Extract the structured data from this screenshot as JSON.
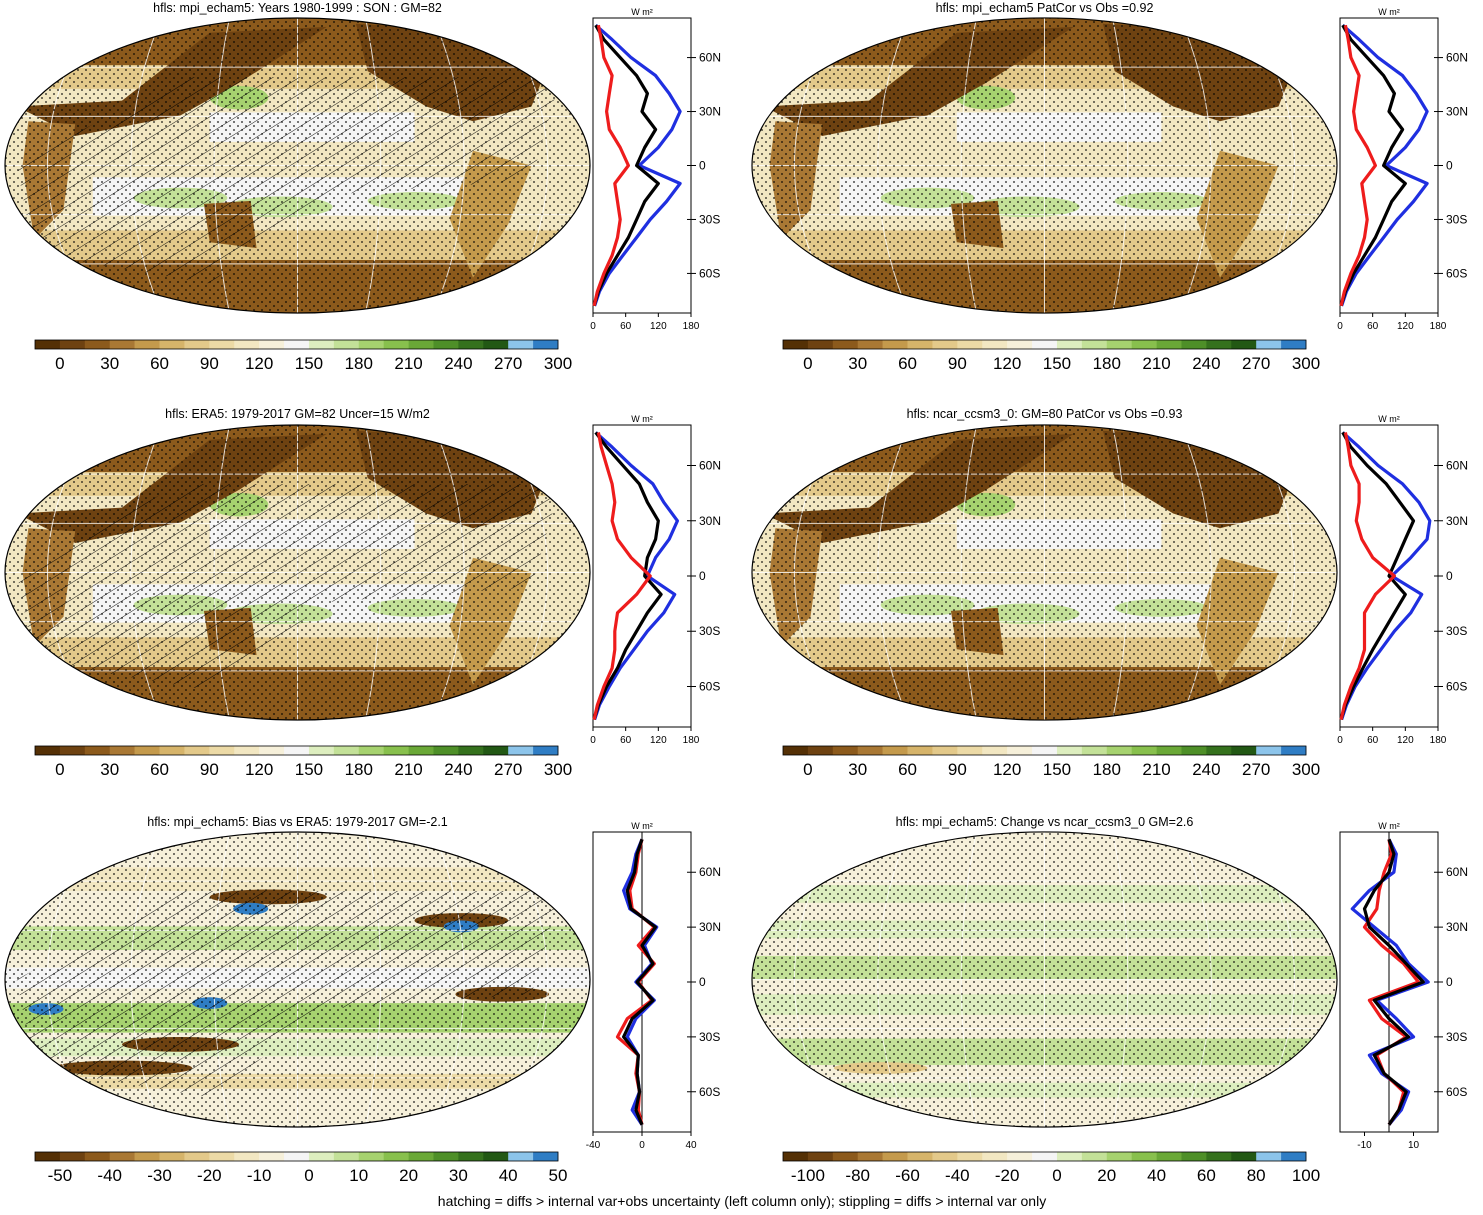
{
  "caption": "hatching = diffs > internal var+obs uncertainty (left column only); stippling = diffs > internal var only",
  "colors": {
    "abs_palette": [
      "#543005",
      "#6e4211",
      "#8c5a1c",
      "#a97834",
      "#c49a4c",
      "#d6b46a",
      "#e3c98a",
      "#ecdaa6",
      "#f2e7c2",
      "#f6f0da",
      "#f5f5f5",
      "#ddeebf",
      "#c3e198",
      "#a6d26f",
      "#88c04d",
      "#6aa837",
      "#4e8f28",
      "#35711d",
      "#225814",
      "#8cc4ea",
      "#2f7dc4"
    ],
    "diff_palette": [
      "#543005",
      "#6e4211",
      "#8c5a1c",
      "#a97834",
      "#c49a4c",
      "#d6b46a",
      "#e3c98a",
      "#ecdaa6",
      "#f2e7c2",
      "#f6f0da",
      "#f5f5f5",
      "#ddeebf",
      "#c3e198",
      "#a6d26f",
      "#88c04d",
      "#6aa837",
      "#4e8f28",
      "#35711d",
      "#225814",
      "#8cc4ea",
      "#2f7dc4"
    ],
    "model": "#1f2fe0",
    "obs": "#ee1c1c",
    "combined": "#000000"
  },
  "chart_data": [
    {
      "type": "heatmap",
      "title": "hfls: mpi_echam5: Years 1980-1999 : SON : GM=82",
      "map_style": "abs",
      "hatching": true,
      "colorbar_labels": [
        "0",
        "30",
        "60",
        "90",
        "120",
        "150",
        "180",
        "210",
        "240",
        "270",
        "300"
      ],
      "profile": {
        "unit": "W m²",
        "xticks": [
          "0",
          "60",
          "120",
          "180"
        ],
        "xlim": [
          0,
          180
        ],
        "yticks": [
          "60N",
          "30N",
          "0",
          "30S",
          "60S"
        ],
        "lat": [
          78,
          70,
          60,
          50,
          40,
          30,
          20,
          10,
          0,
          -10,
          -20,
          -30,
          -40,
          -50,
          -60,
          -70,
          -78
        ],
        "series": [
          {
            "color": "blue",
            "values": [
              5,
              35,
              70,
              115,
              140,
              160,
              145,
              120,
              85,
              160,
              135,
              105,
              80,
              55,
              30,
              12,
              3
            ]
          },
          {
            "color": "black",
            "values": [
              5,
              20,
              50,
              80,
              100,
              90,
              115,
              95,
              80,
              120,
              95,
              80,
              65,
              45,
              25,
              10,
              2
            ]
          },
          {
            "color": "red",
            "values": [
              10,
              15,
              20,
              35,
              30,
              25,
              30,
              50,
              65,
              40,
              45,
              50,
              45,
              35,
              20,
              8,
              2
            ]
          }
        ]
      }
    },
    {
      "type": "heatmap",
      "title": "hfls: mpi_echam5 PatCor vs Obs =0.92",
      "map_style": "abs",
      "hatching": false,
      "colorbar_labels": [
        "0",
        "30",
        "60",
        "90",
        "120",
        "150",
        "180",
        "210",
        "240",
        "270",
        "300"
      ],
      "profile": {
        "unit": "W m²",
        "xticks": [
          "0",
          "60",
          "120",
          "180"
        ],
        "xlim": [
          0,
          180
        ],
        "yticks": [
          "60N",
          "30N",
          "0",
          "30S",
          "60S"
        ],
        "lat": [
          78,
          70,
          60,
          50,
          40,
          30,
          20,
          10,
          0,
          -10,
          -20,
          -30,
          -40,
          -50,
          -60,
          -70,
          -78
        ],
        "series": [
          {
            "color": "blue",
            "values": [
              5,
              35,
              70,
              115,
              140,
              160,
              145,
              120,
              85,
              160,
              135,
              105,
              80,
              55,
              30,
              12,
              3
            ]
          },
          {
            "color": "black",
            "values": [
              5,
              20,
              50,
              80,
              100,
              90,
              115,
              95,
              80,
              120,
              95,
              80,
              65,
              45,
              25,
              10,
              2
            ]
          },
          {
            "color": "red",
            "values": [
              10,
              15,
              20,
              35,
              30,
              25,
              30,
              50,
              65,
              40,
              45,
              50,
              45,
              35,
              20,
              8,
              2
            ]
          }
        ]
      }
    },
    {
      "type": "heatmap",
      "title": "hfls: ERA5: 1979-2017 GM=82 Uncer=15 W/m2",
      "map_style": "abs",
      "hatching": true,
      "colorbar_labels": [
        "0",
        "30",
        "60",
        "90",
        "120",
        "150",
        "180",
        "210",
        "240",
        "270",
        "300"
      ],
      "profile": {
        "unit": "W m²",
        "xticks": [
          "0",
          "60",
          "120",
          "180"
        ],
        "xlim": [
          0,
          180
        ],
        "yticks": [
          "60N",
          "30N",
          "0",
          "30S",
          "60S"
        ],
        "lat": [
          78,
          70,
          60,
          50,
          40,
          30,
          20,
          10,
          0,
          -10,
          -20,
          -30,
          -40,
          -50,
          -60,
          -70,
          -78
        ],
        "series": [
          {
            "color": "blue",
            "values": [
              5,
              35,
              70,
              110,
              130,
              155,
              140,
              115,
              100,
              150,
              130,
              100,
              75,
              50,
              30,
              12,
              3
            ]
          },
          {
            "color": "black",
            "values": [
              5,
              25,
              55,
              85,
              100,
              120,
              115,
              100,
              95,
              125,
              100,
              80,
              60,
              45,
              25,
              10,
              2
            ]
          },
          {
            "color": "red",
            "values": [
              10,
              15,
              25,
              35,
              40,
              35,
              45,
              70,
              105,
              80,
              45,
              40,
              40,
              35,
              20,
              8,
              2
            ]
          }
        ]
      }
    },
    {
      "type": "heatmap",
      "title": "hfls: ncar_ccsm3_0: GM=80 PatCor vs Obs =0.93",
      "map_style": "abs",
      "hatching": false,
      "colorbar_labels": [
        "0",
        "30",
        "60",
        "90",
        "120",
        "150",
        "180",
        "210",
        "240",
        "270",
        "300"
      ],
      "profile": {
        "unit": "W m²",
        "xticks": [
          "0",
          "60",
          "120",
          "180"
        ],
        "xlim": [
          0,
          180
        ],
        "yticks": [
          "60N",
          "30N",
          "0",
          "30S",
          "60S"
        ],
        "lat": [
          78,
          70,
          60,
          50,
          40,
          30,
          20,
          10,
          0,
          -10,
          -20,
          -30,
          -40,
          -50,
          -60,
          -70,
          -78
        ],
        "series": [
          {
            "color": "blue",
            "values": [
              5,
              35,
              70,
              115,
              145,
              165,
              160,
              130,
              95,
              150,
              130,
              100,
              75,
              50,
              28,
              12,
              3
            ]
          },
          {
            "color": "black",
            "values": [
              5,
              20,
              50,
              85,
              110,
              135,
              120,
              105,
              90,
              120,
              100,
              80,
              60,
              42,
              25,
              10,
              2
            ]
          },
          {
            "color": "red",
            "values": [
              10,
              15,
              20,
              35,
              35,
              30,
              40,
              60,
              100,
              65,
              45,
              45,
              45,
              35,
              20,
              8,
              2
            ]
          }
        ]
      }
    },
    {
      "type": "heatmap",
      "title": "hfls: mpi_echam5: Bias vs ERA5: 1979-2017  GM=-2.1",
      "map_style": "diff",
      "hatching": true,
      "colorbar_labels": [
        "-50",
        "-40",
        "-30",
        "-20",
        "-10",
        "0",
        "10",
        "20",
        "30",
        "40",
        "50"
      ],
      "profile": {
        "unit": "W m²",
        "xticks": [
          "-40",
          "0",
          "40"
        ],
        "xlim": [
          -40,
          40
        ],
        "yticks": [
          "60N",
          "30N",
          "0",
          "30S",
          "60S"
        ],
        "lat": [
          78,
          70,
          60,
          50,
          40,
          30,
          20,
          10,
          0,
          -10,
          -20,
          -30,
          -40,
          -50,
          -60,
          -70,
          -78
        ],
        "series": [
          {
            "color": "blue",
            "values": [
              0,
              -5,
              -8,
              -15,
              -10,
              12,
              2,
              8,
              -5,
              10,
              -5,
              -12,
              -3,
              -4,
              -2,
              -8,
              0
            ]
          },
          {
            "color": "red",
            "values": [
              0,
              -3,
              -5,
              -10,
              -8,
              10,
              -3,
              10,
              -3,
              8,
              -12,
              -20,
              -3,
              -5,
              -2,
              -3,
              0
            ]
          },
          {
            "color": "black",
            "values": [
              0,
              -4,
              -6,
              -12,
              -9,
              11,
              0,
              9,
              -4,
              9,
              -8,
              -15,
              -3,
              -4,
              -2,
              -5,
              0
            ]
          }
        ]
      }
    },
    {
      "type": "heatmap",
      "title": "hfls: mpi_echam5: Change vs ncar_ccsm3_0 GM=2.6",
      "map_style": "change",
      "hatching": false,
      "colorbar_labels": [
        "-100",
        "-80",
        "-60",
        "-40",
        "-20",
        "0",
        "20",
        "40",
        "60",
        "80",
        "100"
      ],
      "profile": {
        "unit": "W m²",
        "xticks": [
          "-10",
          "10"
        ],
        "xlim": [
          -20,
          20
        ],
        "yticks": [
          "60N",
          "30N",
          "0",
          "30S",
          "60S"
        ],
        "lat": [
          78,
          70,
          60,
          50,
          40,
          30,
          20,
          10,
          0,
          -10,
          -20,
          -30,
          -40,
          -50,
          -60,
          -70,
          -78
        ],
        "series": [
          {
            "color": "blue",
            "values": [
              0,
              3,
              2,
              -8,
              -15,
              -6,
              3,
              8,
              16,
              -5,
              3,
              10,
              -8,
              -3,
              8,
              5,
              0
            ]
          },
          {
            "color": "red",
            "values": [
              0,
              1,
              -2,
              -4,
              -5,
              -10,
              -3,
              6,
              12,
              -8,
              -3,
              7,
              -5,
              -2,
              6,
              4,
              0
            ]
          },
          {
            "color": "black",
            "values": [
              0,
              2,
              0,
              -6,
              -10,
              -8,
              0,
              7,
              14,
              -6,
              0,
              8,
              -6,
              -2,
              7,
              4,
              0
            ]
          }
        ]
      }
    }
  ]
}
